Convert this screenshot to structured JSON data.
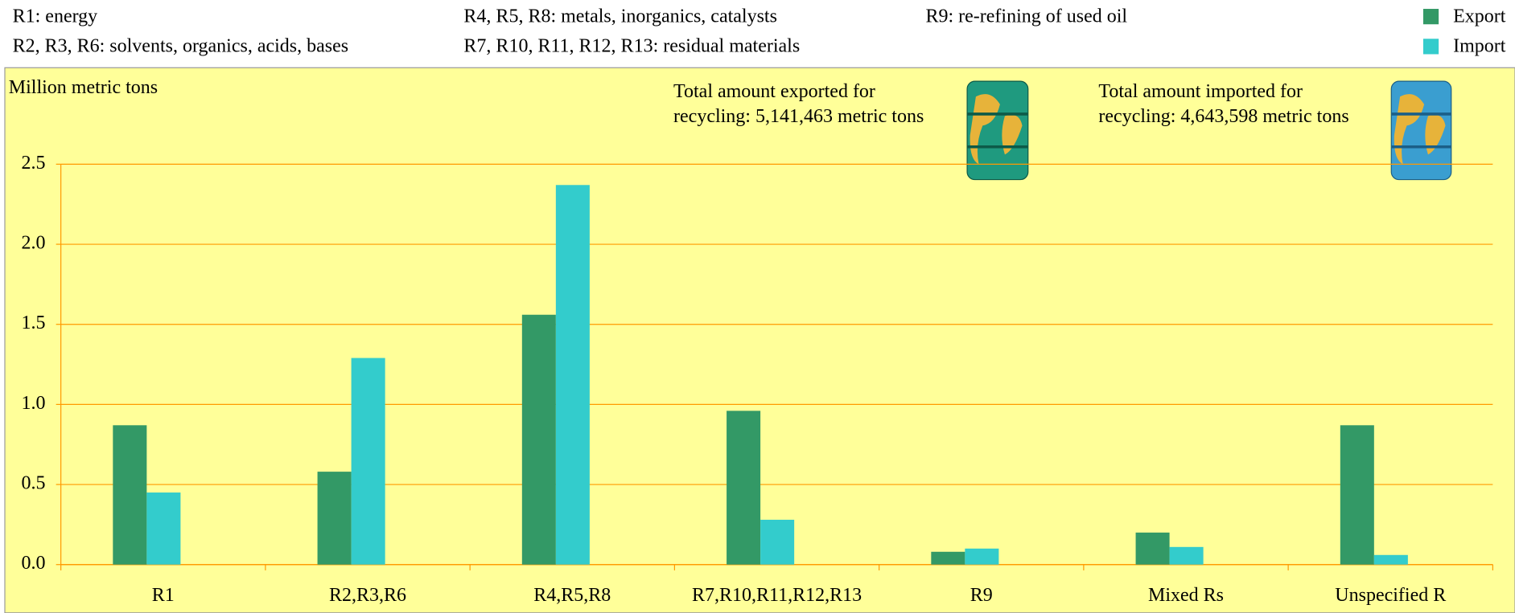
{
  "chart_data": {
    "type": "bar",
    "notes": [
      "R1: energy",
      "R2, R3, R6: solvents, organics, acids, bases",
      "R4, R5, R8: metals, inorganics, catalysts",
      "R7, R10, R11, R12, R13: residual materials",
      "R9: re-refining of used oil"
    ],
    "y_label": "Million metric tons",
    "annotations": [
      {
        "lines": [
          "Total amount exported for",
          "recycling: 5,141,463 metric tons"
        ]
      },
      {
        "lines": [
          "Total amount imported for",
          "recycling: 4,643,598 metric tons"
        ]
      }
    ],
    "categories": [
      "R1",
      "R2,R3,R6",
      "R4,R5,R8",
      "R7,R10,R11,R12,R13",
      "R9",
      "Mixed Rs",
      "Unspecified R"
    ],
    "series": [
      {
        "name": "Export",
        "color": "#339966",
        "values": [
          0.87,
          0.58,
          1.56,
          0.96,
          0.08,
          0.2,
          0.87
        ]
      },
      {
        "name": "Import",
        "color": "#33cccc",
        "values": [
          0.45,
          1.29,
          2.37,
          0.28,
          0.1,
          0.11,
          0.06
        ]
      }
    ],
    "ylim": [
      0,
      2.5
    ],
    "yticks": [
      {
        "value": 0,
        "label": "0.0"
      },
      {
        "value": 0.5,
        "label": "0.5"
      },
      {
        "value": 1,
        "label": "1.0"
      },
      {
        "value": 1.5,
        "label": "1.5"
      },
      {
        "value": 2,
        "label": "2.0"
      },
      {
        "value": 2.5,
        "label": "2.5"
      }
    ],
    "grid": true
  }
}
